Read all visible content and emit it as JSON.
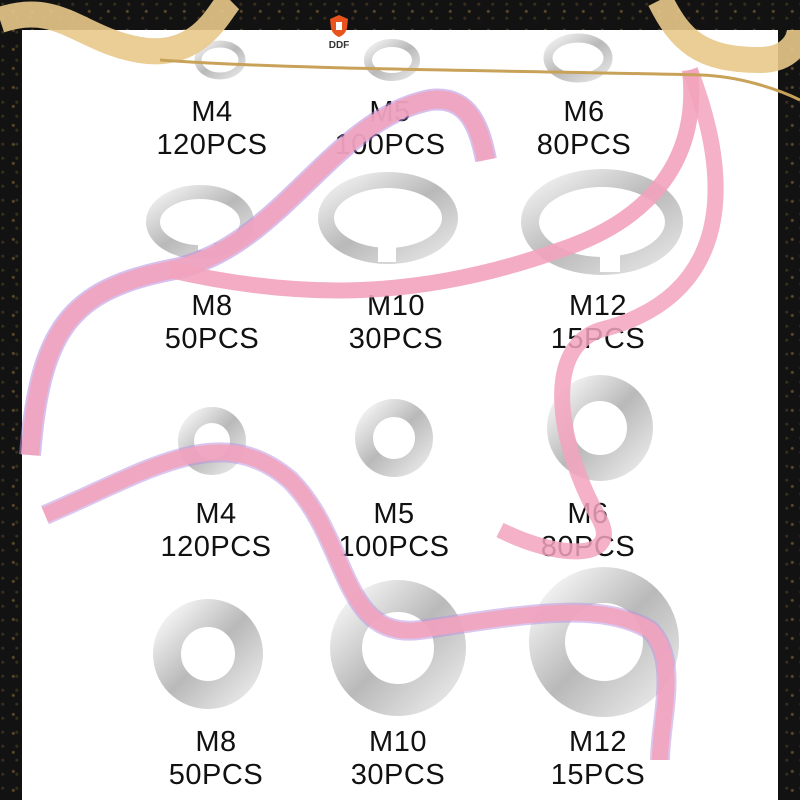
{
  "brand": {
    "name": "DDF",
    "icon": "shield-logo-icon",
    "accent": "#e8541c"
  },
  "colors": {
    "ribbon": "#f2a3bd",
    "ribbon_shadow": "#b58de0",
    "gold": "#c9a25a",
    "metal": "#c8c8c8"
  },
  "spring_washers": [
    {
      "size": "M4",
      "qty": "120PCS"
    },
    {
      "size": "M5",
      "qty": "100PCS"
    },
    {
      "size": "M6",
      "qty": "80PCS"
    },
    {
      "size": "M8",
      "qty": "50PCS"
    },
    {
      "size": "M10",
      "qty": "30PCS"
    },
    {
      "size": "M12",
      "qty": "15PCS"
    }
  ],
  "flat_washers": [
    {
      "size": "M4",
      "qty": "120PCS"
    },
    {
      "size": "M5",
      "qty": "100PCS"
    },
    {
      "size": "M6",
      "qty": "80PCS"
    },
    {
      "size": "M8",
      "qty": "50PCS"
    },
    {
      "size": "M10",
      "qty": "30PCS"
    },
    {
      "size": "M12",
      "qty": "15PCS"
    }
  ]
}
